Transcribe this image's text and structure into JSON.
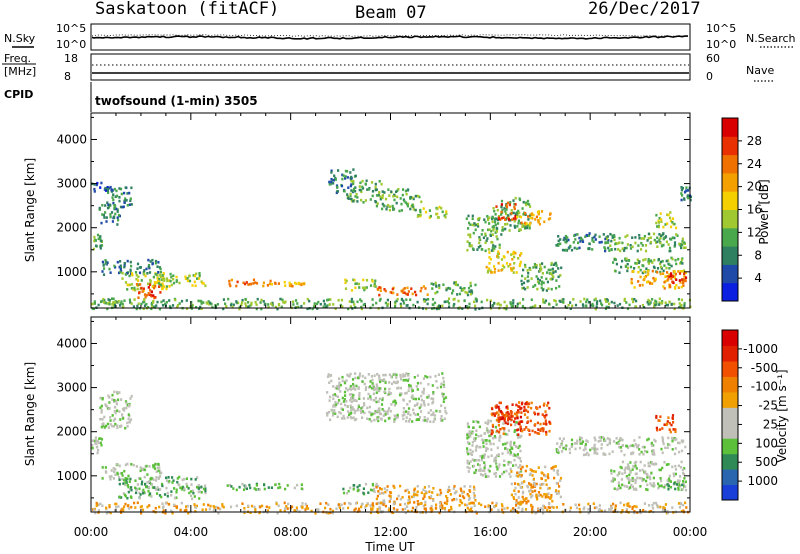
{
  "header": {
    "station": "Saskatoon (fitACF)",
    "beam": "Beam 07",
    "date": "26/Dec/2017"
  },
  "top_panels": {
    "nsky_label": "N.Sky",
    "nsearch_label": "N.Search",
    "noise_ticks": [
      "10^5",
      "10^0"
    ],
    "freq_label_1": "Freq.",
    "freq_label_2": "[MHz]",
    "freq_ticks": [
      "18",
      "8"
    ],
    "nave_label": "Nave",
    "nave_ticks": [
      "60",
      "0"
    ],
    "cpid_label": "CPID",
    "cpid_text": "twofsound (1-min) 3505"
  },
  "chart_data": [
    {
      "type": "heatmap",
      "name": "power",
      "ylabel": "Slant Range [km]",
      "xlabel": "",
      "x_ticks": [
        "00:00",
        "04:00",
        "08:00",
        "12:00",
        "16:00",
        "20:00",
        "00:00"
      ],
      "x_range_hours": [
        0,
        24
      ],
      "y_ticks": [
        1000,
        2000,
        3000,
        4000
      ],
      "y_range_km": [
        180,
        4600
      ],
      "colorbar_label": "Power [dB]",
      "colorbar_ticks": [
        "4",
        "8",
        "12",
        "16",
        "20",
        "24",
        "28"
      ],
      "colorbar_colors": [
        "#0a1fe0",
        "#1f4aa8",
        "#2f8060",
        "#4aa84c",
        "#a0c830",
        "#f4d000",
        "#f4a000",
        "#f07000",
        "#e83000",
        "#d80000"
      ],
      "regions": [
        {
          "t0": 0.0,
          "t1": 0.4,
          "r0": 1500,
          "r1": 1900,
          "level": 3
        },
        {
          "t0": 0.3,
          "t1": 1.2,
          "r0": 2100,
          "r1": 2600,
          "level": 2
        },
        {
          "t0": 0.6,
          "t1": 1.6,
          "r0": 2450,
          "r1": 2950,
          "level": 2
        },
        {
          "t0": 0.0,
          "t1": 0.8,
          "r0": 2800,
          "r1": 3050,
          "level": 1
        },
        {
          "t0": 0.4,
          "t1": 2.8,
          "r0": 950,
          "r1": 1300,
          "level": 2
        },
        {
          "t0": 1.2,
          "t1": 3.0,
          "r0": 600,
          "r1": 1000,
          "level": 4
        },
        {
          "t0": 1.8,
          "t1": 2.8,
          "r0": 400,
          "r1": 750,
          "level": 8
        },
        {
          "t0": 2.6,
          "t1": 4.6,
          "r0": 700,
          "r1": 1000,
          "level": 4
        },
        {
          "t0": 5.4,
          "t1": 7.2,
          "r0": 700,
          "r1": 850,
          "level": 7
        },
        {
          "t0": 7.2,
          "t1": 8.6,
          "r0": 700,
          "r1": 800,
          "level": 6
        },
        {
          "t0": 9.5,
          "t1": 10.6,
          "r0": 2800,
          "r1": 3350,
          "level": 2
        },
        {
          "t0": 10.2,
          "t1": 11.6,
          "r0": 2600,
          "r1": 3100,
          "level": 3
        },
        {
          "t0": 11.4,
          "t1": 13.2,
          "r0": 2400,
          "r1": 2900,
          "level": 3
        },
        {
          "t0": 13.0,
          "t1": 14.2,
          "r0": 2250,
          "r1": 2500,
          "level": 4
        },
        {
          "t0": 10.0,
          "t1": 11.4,
          "r0": 600,
          "r1": 850,
          "level": 4
        },
        {
          "t0": 11.4,
          "t1": 13.6,
          "r0": 500,
          "r1": 700,
          "level": 7
        },
        {
          "t0": 13.6,
          "t1": 15.4,
          "r0": 500,
          "r1": 800,
          "level": 3
        },
        {
          "t0": 15.0,
          "t1": 16.4,
          "r0": 1500,
          "r1": 2300,
          "level": 3
        },
        {
          "t0": 15.8,
          "t1": 17.2,
          "r0": 1000,
          "r1": 1500,
          "level": 5
        },
        {
          "t0": 16.0,
          "t1": 17.6,
          "r0": 1950,
          "r1": 2700,
          "level": 3
        },
        {
          "t0": 16.2,
          "t1": 17.0,
          "r0": 2200,
          "r1": 2600,
          "level": 8
        },
        {
          "t0": 17.0,
          "t1": 18.4,
          "r0": 2100,
          "r1": 2400,
          "level": 6
        },
        {
          "t0": 17.2,
          "t1": 18.8,
          "r0": 600,
          "r1": 1250,
          "level": 3
        },
        {
          "t0": 18.6,
          "t1": 20.8,
          "r0": 1500,
          "r1": 1900,
          "level": 2
        },
        {
          "t0": 20.4,
          "t1": 23.8,
          "r0": 1500,
          "r1": 1900,
          "level": 3
        },
        {
          "t0": 20.8,
          "t1": 23.8,
          "r0": 1000,
          "r1": 1350,
          "level": 3
        },
        {
          "t0": 21.6,
          "t1": 23.8,
          "r0": 650,
          "r1": 1050,
          "level": 6
        },
        {
          "t0": 23.0,
          "t1": 23.8,
          "r0": 700,
          "r1": 1000,
          "level": 8
        },
        {
          "t0": 22.6,
          "t1": 23.4,
          "r0": 2000,
          "r1": 2400,
          "level": 4
        },
        {
          "t0": 23.6,
          "t1": 24.0,
          "r0": 2650,
          "r1": 2950,
          "level": 2
        },
        {
          "t0": 0.0,
          "t1": 24.0,
          "r0": 180,
          "r1": 420,
          "level": 3
        }
      ]
    },
    {
      "type": "heatmap",
      "name": "velocity",
      "ylabel": "Slant Range [km]",
      "xlabel": "Time UT",
      "x_ticks": [
        "00:00",
        "04:00",
        "08:00",
        "12:00",
        "16:00",
        "20:00",
        "00:00"
      ],
      "x_range_hours": [
        0,
        24
      ],
      "y_ticks": [
        1000,
        2000,
        3000,
        4000
      ],
      "y_range_km": [
        180,
        4600
      ],
      "colorbar_label": "Velocity [m s⁻¹]",
      "colorbar_ticks": [
        "1000",
        "500",
        "100",
        "25",
        "-25",
        "-100",
        "-500",
        "-1000"
      ],
      "colorbar_colors": [
        "#1a3fd8",
        "#2a66b0",
        "#2f8a55",
        "#5cc03a",
        "#c0c0b8",
        "#c0c0b8",
        "#f0a000",
        "#f08000",
        "#f05000",
        "#e02000",
        "#d80000"
      ],
      "regions": [
        {
          "t0": 0.0,
          "t1": 0.4,
          "r0": 1500,
          "r1": 1900,
          "level": 4
        },
        {
          "t0": 0.3,
          "t1": 1.6,
          "r0": 2100,
          "r1": 2950,
          "level": 4
        },
        {
          "t0": 0.4,
          "t1": 2.8,
          "r0": 950,
          "r1": 1300,
          "level": 4
        },
        {
          "t0": 1.0,
          "t1": 4.6,
          "r0": 500,
          "r1": 1000,
          "level": 3
        },
        {
          "t0": 5.4,
          "t1": 8.6,
          "r0": 700,
          "r1": 850,
          "level": 3
        },
        {
          "t0": 9.4,
          "t1": 14.2,
          "r0": 2250,
          "r1": 3350,
          "level": 4
        },
        {
          "t0": 10.0,
          "t1": 11.4,
          "r0": 600,
          "r1": 850,
          "level": 3
        },
        {
          "t0": 11.4,
          "t1": 15.4,
          "r0": 400,
          "r1": 800,
          "level": 6
        },
        {
          "t0": 15.0,
          "t1": 17.2,
          "r0": 1000,
          "r1": 2300,
          "level": 4
        },
        {
          "t0": 16.0,
          "t1": 18.4,
          "r0": 1950,
          "r1": 2700,
          "level": 8
        },
        {
          "t0": 16.2,
          "t1": 17.2,
          "r0": 2200,
          "r1": 2600,
          "level": 9
        },
        {
          "t0": 16.8,
          "t1": 18.8,
          "r0": 400,
          "r1": 1250,
          "level": 6
        },
        {
          "t0": 18.6,
          "t1": 23.8,
          "r0": 1500,
          "r1": 1900,
          "level": 4
        },
        {
          "t0": 20.8,
          "t1": 23.8,
          "r0": 700,
          "r1": 1350,
          "level": 4
        },
        {
          "t0": 22.6,
          "t1": 23.4,
          "r0": 2000,
          "r1": 2400,
          "level": 8
        },
        {
          "t0": 23.0,
          "t1": 23.8,
          "r0": 700,
          "r1": 1000,
          "level": 3
        },
        {
          "t0": 0.0,
          "t1": 24.0,
          "r0": 180,
          "r1": 420,
          "level": 6
        }
      ]
    }
  ]
}
